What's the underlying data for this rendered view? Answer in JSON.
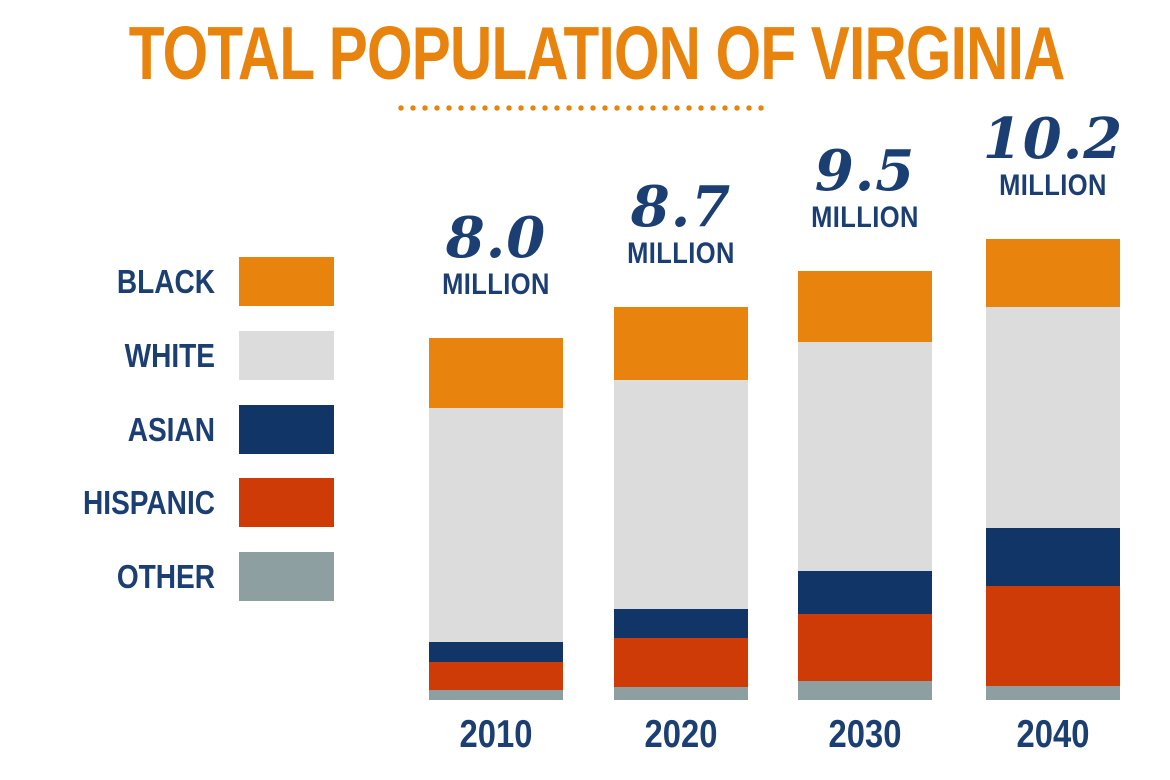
{
  "title": "TOTAL POPULATION OF VIRGINIA",
  "colors": {
    "orange": "#E8830D",
    "navy_text": "#1B3E73",
    "white_segment": "#DCDCDC",
    "asian_navy": "#123568",
    "hispanic_red": "#CE3B06",
    "other_gray": "#8E9FA1",
    "background": "#FFFFFF"
  },
  "legend": {
    "items": [
      {
        "label": "BLACK",
        "color": "#E8830D"
      },
      {
        "label": "WHITE",
        "color": "#DCDCDC"
      },
      {
        "label": "ASIAN",
        "color": "#123568"
      },
      {
        "label": "HISPANIC",
        "color": "#CE3B06"
      },
      {
        "label": "OTHER",
        "color": "#8E9FA1"
      }
    ]
  },
  "chart_data": {
    "type": "bar",
    "stacked": true,
    "title": "TOTAL POPULATION OF VIRGINIA",
    "unit": "millions of people",
    "categories": [
      "2010",
      "2020",
      "2030",
      "2040"
    ],
    "totals": [
      8.0,
      8.7,
      9.5,
      10.2
    ],
    "totals_label": [
      "8.0",
      "8.7",
      "9.5",
      "10.2"
    ],
    "total_suffix": "MILLION",
    "series": [
      {
        "name": "BLACK",
        "color": "#E8830D",
        "values": [
          1.54,
          1.61,
          1.57,
          1.5
        ]
      },
      {
        "name": "WHITE",
        "color": "#DCDCDC",
        "values": [
          5.18,
          5.07,
          5.08,
          4.9
        ]
      },
      {
        "name": "ASIAN",
        "color": "#123568",
        "values": [
          0.45,
          0.64,
          0.95,
          1.28
        ]
      },
      {
        "name": "HISPANIC",
        "color": "#CE3B06",
        "values": [
          0.62,
          1.1,
          1.47,
          2.21
        ]
      },
      {
        "name": "OTHER",
        "color": "#8E9FA1",
        "values": [
          0.21,
          0.28,
          0.43,
          0.31
        ]
      }
    ],
    "ylim": [
      0,
      10.2
    ],
    "grid": false,
    "legend_position": "left",
    "xlabel": "",
    "ylabel": ""
  }
}
